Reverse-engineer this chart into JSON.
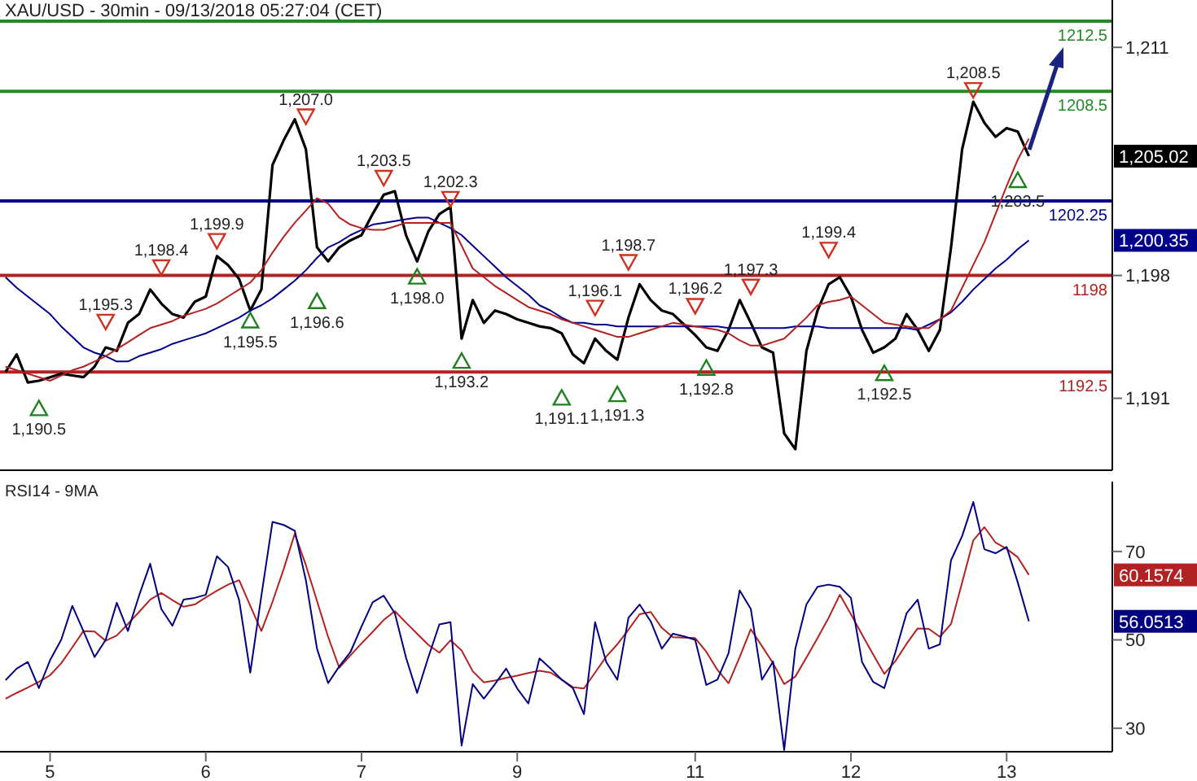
{
  "chart_data": [
    {
      "type": "line",
      "title": "XAU/USD - 30min - 09/13/2018 05:27:04 (CET)",
      "ylim": [
        1186.9,
        1213.7
      ],
      "yticks": [
        {
          "value": 1191,
          "label": "1,191"
        },
        {
          "value": 1198,
          "label": "1,198"
        },
        {
          "value": 1211,
          "label": "1,211"
        }
      ],
      "tick_labels": "y",
      "categories": [
        null,
        null,
        null,
        null,
        "5",
        null,
        null,
        null,
        null,
        null,
        null,
        null,
        null,
        null,
        null,
        null,
        null,
        null,
        "6",
        null,
        null,
        null,
        null,
        null,
        null,
        null,
        null,
        null,
        null,
        null,
        null,
        null,
        "7",
        null,
        null,
        null,
        null,
        null,
        null,
        null,
        null,
        null,
        null,
        null,
        null,
        null,
        "9",
        null,
        null,
        null,
        null,
        null,
        null,
        null,
        null,
        null,
        null,
        null,
        null,
        null,
        null,
        null,
        "11",
        null,
        null,
        null,
        null,
        null,
        null,
        null,
        null,
        null,
        null,
        null,
        null,
        null,
        "12",
        null,
        null,
        null,
        null,
        null,
        null,
        null,
        null,
        null,
        null,
        null,
        null,
        null,
        "13",
        null,
        null,
        null,
        null,
        null,
        null,
        null,
        null,
        null
      ],
      "ref_lines": [
        {
          "axis": "y",
          "value": 1212.5,
          "label": "1212.5",
          "color": "#228b22"
        },
        {
          "axis": "y",
          "value": 1208.5,
          "label": "1208.5",
          "color": "#228b22"
        },
        {
          "axis": "y",
          "value": 1202.25,
          "label": "1202.25",
          "color": "#00008b"
        },
        {
          "axis": "y",
          "value": 1198,
          "label": "1198",
          "color": "#b22222"
        },
        {
          "axis": "y",
          "value": 1192.5,
          "label": "1192.5",
          "color": "#b22222"
        }
      ],
      "annotations": [
        "1,205.02",
        "1,200.35"
      ],
      "series": [
        {
          "color": "#000000",
          "values": [
            1192.5,
            1193.5,
            1191.9,
            1192.0,
            1192.2,
            1192.4,
            1192.3,
            1192.2,
            1192.8,
            1193.9,
            1193.7,
            1195.3,
            1195.8,
            1197.2,
            1196.4,
            1195.8,
            1195.6,
            1196.5,
            1196.8,
            1199.1,
            1198.6,
            1197.8,
            1196.0,
            1197.2,
            1204.3,
            1205.7,
            1206.9,
            1205.2,
            1199.6,
            1198.8,
            1199.6,
            1200.0,
            1200.3,
            1201.5,
            1202.6,
            1202.8,
            1200.3,
            1198.8,
            1200.5,
            1201.5,
            1201.9,
            1194.4,
            1196.6,
            1195.3,
            1196.0,
            1195.8,
            1195.5,
            1195.3,
            1195.1,
            1195.0,
            1194.7,
            1193.5,
            1193.0,
            1194.4,
            1193.7,
            1193.2,
            1195.6,
            1197.5,
            1196.6,
            1196.0,
            1195.8,
            1195.2,
            1194.6,
            1193.9,
            1193.7,
            1194.9,
            1196.6,
            1195.3,
            1193.9,
            1193.6,
            1189.0,
            1188.1,
            1193.7,
            1196.0,
            1197.5,
            1197.9,
            1196.8,
            1194.9,
            1193.6,
            1193.9,
            1194.4,
            1195.8,
            1194.9,
            1193.7,
            1194.9,
            1199.6,
            1205.2,
            1207.9,
            1206.7,
            1205.9,
            1206.4,
            1206.2,
            1204.8,
            null,
            null,
            null,
            null,
            null,
            null,
            null
          ]
        },
        {
          "color": "#00008b",
          "values": [
            1197.9,
            1197.3,
            1196.8,
            1196.3,
            1195.8,
            1195.1,
            1194.5,
            1193.9,
            1193.6,
            1193.4,
            1193.1,
            1193.1,
            1193.4,
            1193.6,
            1193.8,
            1194.1,
            1194.3,
            1194.5,
            1194.7,
            1195.0,
            1195.3,
            1195.6,
            1196.0,
            1196.3,
            1196.7,
            1197.2,
            1197.7,
            1198.3,
            1199.0,
            1199.6,
            1199.9,
            1200.3,
            1200.6,
            1200.9,
            1201.0,
            1201.1,
            1201.2,
            1201.3,
            1201.3,
            1201.0,
            1200.7,
            1200.3,
            1199.7,
            1199.1,
            1198.5,
            1197.9,
            1197.4,
            1196.9,
            1196.3,
            1196.0,
            1195.6,
            1195.3,
            1195.3,
            1195.2,
            1195.2,
            1195.1,
            1195.1,
            1195.1,
            1195.1,
            1195.1,
            1195.1,
            1195.1,
            1195.1,
            1195.1,
            1195.1,
            1195.0,
            1195.0,
            1195.0,
            1195.0,
            1195.0,
            1195.0,
            1195.1,
            1195.1,
            1195.1,
            1195.0,
            1195.0,
            1195.0,
            1195.0,
            1195.0,
            1195.0,
            1195.0,
            1195.0,
            1194.9,
            1195.2,
            1195.5,
            1195.9,
            1196.5,
            1197.2,
            1197.8,
            1198.4,
            1198.9,
            1199.5,
            1200.0,
            null,
            null,
            null,
            null,
            null,
            null,
            null
          ]
        },
        {
          "color": "#b22222",
          "values": [
            1192.8,
            1192.6,
            1192.4,
            1192.2,
            1192.0,
            1192.3,
            1192.6,
            1192.8,
            1193.1,
            1193.4,
            1193.8,
            1194.2,
            1194.6,
            1195.0,
            1195.2,
            1195.4,
            1195.7,
            1195.9,
            1196.1,
            1196.4,
            1196.8,
            1197.2,
            1197.6,
            1198.3,
            1199.3,
            1200.2,
            1201.0,
            1201.7,
            1202.4,
            1202.1,
            1201.3,
            1200.9,
            1200.7,
            1200.6,
            1200.6,
            1200.8,
            1201.0,
            1201.0,
            1201.0,
            1201.0,
            1201.0,
            1199.7,
            1198.4,
            1197.9,
            1197.4,
            1197.0,
            1196.6,
            1196.2,
            1196.0,
            1195.8,
            1195.5,
            1195.3,
            1195.1,
            1194.9,
            1194.7,
            1194.5,
            1194.5,
            1194.7,
            1194.9,
            1195.1,
            1195.3,
            1195.2,
            1195.1,
            1195.0,
            1194.9,
            1194.7,
            1194.3,
            1194.0,
            1194.0,
            1194.2,
            1194.4,
            1195.0,
            1195.6,
            1196.3,
            1196.5,
            1196.6,
            1196.8,
            1196.3,
            1195.8,
            1195.3,
            1195.2,
            1195.1,
            1195.0,
            1195.0,
            1195.5,
            1196.0,
            1197.3,
            1198.6,
            1199.9,
            1201.5,
            1203.1,
            1204.6,
            1205.8,
            null,
            null,
            null,
            null,
            null,
            null,
            null
          ]
        },
        {
          "type": "scatter",
          "marker": "triangle",
          "color": "#d03020",
          "values": [
            null,
            null,
            null,
            null,
            null,
            null,
            null,
            null,
            null,
            1195.3,
            null,
            null,
            null,
            null,
            1198.4,
            null,
            null,
            null,
            null,
            1199.9,
            null,
            null,
            null,
            null,
            null,
            null,
            null,
            1207.0,
            null,
            null,
            null,
            null,
            null,
            null,
            1203.5,
            null,
            null,
            null,
            null,
            null,
            1202.3,
            null,
            null,
            null,
            null,
            null,
            null,
            null,
            null,
            null,
            null,
            null,
            null,
            1196.1,
            null,
            null,
            1198.7,
            null,
            null,
            null,
            null,
            null,
            1196.2,
            null,
            null,
            null,
            null,
            1197.3,
            null,
            null,
            null,
            null,
            null,
            null,
            1199.4,
            null,
            null,
            null,
            null,
            null,
            null,
            null,
            null,
            null,
            null,
            null,
            null,
            1208.5,
            null,
            null,
            null,
            null,
            null,
            null,
            null,
            null,
            null,
            null,
            null,
            null
          ],
          "value_labels": [
            null,
            null,
            null,
            null,
            null,
            null,
            null,
            null,
            null,
            "1,195.3",
            null,
            null,
            null,
            null,
            "1,198.4",
            null,
            null,
            null,
            null,
            "1,199.9",
            null,
            null,
            null,
            null,
            null,
            null,
            null,
            "1,207.0",
            null,
            null,
            null,
            null,
            null,
            null,
            "1,203.5",
            null,
            null,
            null,
            null,
            null,
            "1,202.3",
            null,
            null,
            null,
            null,
            null,
            null,
            null,
            null,
            null,
            null,
            null,
            null,
            "1,196.1",
            null,
            null,
            "1,198.7",
            null,
            null,
            null,
            null,
            null,
            "1,196.2",
            null,
            null,
            null,
            null,
            "1,197.3",
            null,
            null,
            null,
            null,
            null,
            null,
            "1,199.4",
            null,
            null,
            null,
            null,
            null,
            null,
            null,
            null,
            null,
            null,
            null,
            null,
            "1,208.5",
            null,
            null,
            null,
            null,
            null,
            null,
            null,
            null,
            null,
            null,
            null,
            null
          ]
        },
        {
          "type": "scatter",
          "marker": "triangle",
          "color": "#208020",
          "values": [
            null,
            null,
            null,
            1190.5,
            null,
            null,
            null,
            null,
            null,
            null,
            null,
            null,
            null,
            null,
            null,
            null,
            null,
            null,
            null,
            null,
            null,
            null,
            1195.5,
            null,
            null,
            null,
            null,
            null,
            1196.6,
            null,
            null,
            null,
            null,
            null,
            null,
            null,
            null,
            1198.0,
            null,
            null,
            null,
            1193.2,
            null,
            null,
            null,
            null,
            null,
            null,
            null,
            null,
            1191.1,
            null,
            null,
            null,
            null,
            1191.3,
            null,
            null,
            null,
            null,
            null,
            null,
            null,
            1192.8,
            null,
            null,
            null,
            null,
            null,
            null,
            null,
            null,
            null,
            null,
            null,
            null,
            null,
            null,
            null,
            1192.5,
            null,
            null,
            null,
            null,
            null,
            null,
            null,
            null,
            null,
            null,
            null,
            1203.5,
            null,
            null,
            null,
            null,
            null,
            null,
            null,
            null
          ],
          "value_labels": [
            null,
            null,
            null,
            "1,190.5",
            null,
            null,
            null,
            null,
            null,
            null,
            null,
            null,
            null,
            null,
            null,
            null,
            null,
            null,
            null,
            null,
            null,
            null,
            "1,195.5",
            null,
            null,
            null,
            null,
            null,
            "1,196.6",
            null,
            null,
            null,
            null,
            null,
            null,
            null,
            null,
            "1,198.0",
            null,
            null,
            null,
            "1,193.2",
            null,
            null,
            null,
            null,
            null,
            null,
            null,
            null,
            "1,191.1",
            null,
            null,
            null,
            null,
            "1,191.3",
            null,
            null,
            null,
            null,
            null,
            null,
            null,
            "1,192.8",
            null,
            null,
            null,
            null,
            null,
            null,
            null,
            null,
            null,
            null,
            null,
            null,
            null,
            null,
            null,
            "1,192.5",
            null,
            null,
            null,
            null,
            null,
            null,
            null,
            null,
            null,
            null,
            null,
            "1,203.5",
            null,
            null,
            null,
            null,
            null,
            null,
            null,
            null
          ]
        }
      ]
    },
    {
      "type": "line",
      "title": "RSI14 - 9MA",
      "ylim": [
        24.7,
        85.8
      ],
      "yticks": [
        30,
        50,
        70
      ],
      "categories": [
        null,
        null,
        null,
        null,
        "5",
        null,
        null,
        null,
        null,
        null,
        null,
        null,
        null,
        null,
        null,
        null,
        null,
        null,
        "6",
        null,
        null,
        null,
        null,
        null,
        null,
        null,
        null,
        null,
        null,
        null,
        null,
        null,
        "7",
        null,
        null,
        null,
        null,
        null,
        null,
        null,
        null,
        null,
        null,
        null,
        null,
        null,
        "9",
        null,
        null,
        null,
        null,
        null,
        null,
        null,
        null,
        null,
        null,
        null,
        null,
        null,
        null,
        null,
        "11",
        null,
        null,
        null,
        null,
        null,
        null,
        null,
        null,
        null,
        null,
        null,
        null,
        null,
        "12",
        null,
        null,
        null,
        null,
        null,
        null,
        null,
        null,
        null,
        null,
        null,
        null,
        null,
        "13",
        null,
        null,
        null,
        null,
        null,
        null,
        null,
        null,
        null
      ],
      "annotations": [
        "60.1574",
        "56.0513"
      ],
      "series": [
        {
          "color": "#b22222",
          "values": [
            36.7,
            38.0,
            39.2,
            40.5,
            42.0,
            44.7,
            48.3,
            52.0,
            51.9,
            49.8,
            51.0,
            53.6,
            56.3,
            59.1,
            60.6,
            59.0,
            57.5,
            58.0,
            59.6,
            61.1,
            62.5,
            63.5,
            57.7,
            52.0,
            58.6,
            66.0,
            74.0,
            66.9,
            58.8,
            50.7,
            43.7,
            46.5,
            49.2,
            51.8,
            54.5,
            56.5,
            53.9,
            51.4,
            48.9,
            47.1,
            49.9,
            47.6,
            42.9,
            40.4,
            40.8,
            41.4,
            41.9,
            42.5,
            43.0,
            42.6,
            41.0,
            39.3,
            39.0,
            42.6,
            46.2,
            49.0,
            52.3,
            55.8,
            56.3,
            52.7,
            50.6,
            50.5,
            50.4,
            47.3,
            43.2,
            40.2,
            46.1,
            52.4,
            48.6,
            44.7,
            40.0,
            41.7,
            46.0,
            50.4,
            55.0,
            60.2,
            55.8,
            51.2,
            46.7,
            42.3,
            45.2,
            49.1,
            52.6,
            52.5,
            50.7,
            53.6,
            63.0,
            72.5,
            75.5,
            72.0,
            70.6,
            68.7,
            64.7,
            null,
            null,
            null,
            null,
            null,
            null,
            null
          ]
        },
        {
          "color": "#000080",
          "values": [
            40.9,
            43.5,
            45.0,
            39.1,
            45.4,
            50.0,
            57.7,
            52.0,
            46.1,
            50.0,
            58.4,
            52.0,
            60.0,
            67.2,
            57.0,
            53.2,
            59.1,
            59.5,
            60.2,
            68.9,
            66.5,
            59.0,
            42.6,
            60.0,
            76.7,
            76.0,
            74.7,
            63.5,
            48.0,
            40.2,
            44.0,
            47.2,
            53.0,
            58.5,
            60.0,
            56.0,
            46.0,
            38.0,
            46.0,
            53.5,
            54.0,
            26.1,
            40.0,
            36.7,
            40.0,
            43.5,
            39.0,
            35.6,
            45.8,
            43.5,
            41.0,
            39.1,
            33.2,
            54.0,
            45.0,
            41.0,
            55.0,
            58.0,
            54.2,
            48.0,
            51.4,
            50.8,
            50.0,
            39.8,
            41.0,
            47.0,
            61.2,
            57.0,
            41.0,
            45.1,
            25.1,
            48.0,
            58.0,
            62.0,
            62.5,
            62.0,
            59.5,
            45.0,
            40.5,
            39.1,
            47.2,
            56.0,
            59.1,
            48.0,
            49.0,
            68.0,
            73.5,
            81.2,
            70.5,
            69.6,
            71.0,
            63.0,
            54.2,
            null,
            null,
            null,
            null,
            null,
            null,
            null
          ]
        }
      ]
    }
  ]
}
